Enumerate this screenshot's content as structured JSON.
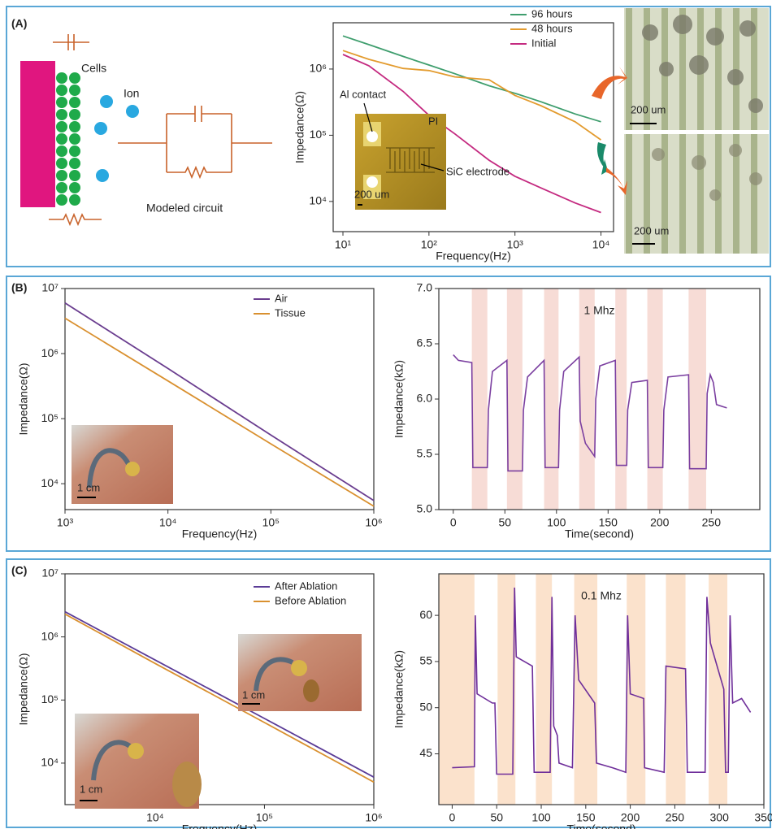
{
  "panels": [
    {
      "label": "(A)"
    },
    {
      "label": "(B)"
    },
    {
      "label": "(C)"
    }
  ],
  "diagram": {
    "cells": "Cells",
    "ion": "Ion",
    "circuit": "Modeled circuit"
  },
  "images": [
    {
      "scale_bar": "200 um"
    },
    {
      "scale_bar": "200 um"
    },
    {
      "scale_bar": "200 um"
    },
    {
      "scale_bar": "1 cm"
    },
    {
      "scale_bar": "1 cm"
    },
    {
      "scale_bar": "1 cm"
    }
  ],
  "chart_data": [
    {
      "type": "line",
      "xlabel": "Frequency(Hz)",
      "ylabel": "Impedance(Ω)",
      "xscale": "log",
      "yscale": "log",
      "x": [
        10,
        20,
        50,
        100,
        200,
        500,
        1000,
        2000,
        5000,
        10000
      ],
      "series": [
        {
          "name": "96 hours",
          "color": "#3f9e6e",
          "values": [
            3160000,
            2340000,
            1550000,
            1150000,
            850000,
            560000,
            430000,
            320000,
            210000,
            160000
          ]
        },
        {
          "name": "48 hours",
          "color": "#e39b2e",
          "values": [
            1900000,
            1400000,
            1020000,
            950000,
            760000,
            690000,
            400000,
            280000,
            160000,
            85000
          ]
        },
        {
          "name": "Initial",
          "color": "#c42a80",
          "values": [
            1660000,
            1120000,
            460000,
            200000,
            105000,
            42000,
            24000,
            16000,
            9500,
            6800
          ]
        }
      ],
      "xlim": [
        7.7,
        14000
      ],
      "ylim": [
        3500,
        5000000
      ],
      "xticks": [
        {
          "value": 10,
          "label": "10¹"
        },
        {
          "value": 100,
          "label": "10²"
        },
        {
          "value": 1000,
          "label": "10³"
        },
        {
          "value": 10000,
          "label": "10⁴"
        }
      ],
      "yticks": [
        {
          "value": 10000,
          "label": "10⁴"
        },
        {
          "value": 100000,
          "label": "10⁵"
        },
        {
          "value": 1000000,
          "label": "10⁶"
        }
      ],
      "legend": "upper right",
      "grid": false,
      "annotations": [
        "Al contact",
        "PI",
        "SiC electrode"
      ]
    },
    {
      "type": "line",
      "xlabel": "Frequency(Hz)",
      "ylabel": "Impedance(Ω)",
      "xscale": "log",
      "yscale": "log",
      "x": [
        1000,
        10000,
        100000,
        1000000
      ],
      "series": [
        {
          "name": "Air",
          "color": "#6a3d8f",
          "values": [
            6000000,
            590000,
            56000,
            5500
          ]
        },
        {
          "name": "Tissue",
          "color": "#d9902f",
          "values": [
            3500000,
            380000,
            41000,
            4500
          ]
        }
      ],
      "xlim": [
        1000,
        1000000
      ],
      "ylim": [
        4000,
        10000000
      ],
      "xticks": [
        {
          "value": 1000,
          "label": "10³"
        },
        {
          "value": 10000,
          "label": "10⁴"
        },
        {
          "value": 100000,
          "label": "10⁵"
        },
        {
          "value": 1000000,
          "label": "10⁶"
        }
      ],
      "yticks": [
        {
          "value": 10000,
          "label": "10⁴"
        },
        {
          "value": 100000,
          "label": "10⁵"
        },
        {
          "value": 1000000,
          "label": "10⁶"
        },
        {
          "value": 10000000,
          "label": "10⁷"
        }
      ],
      "legend": "upper right",
      "grid": false
    },
    {
      "type": "line",
      "xlabel": "Time(second)",
      "ylabel": "Impedance(kΩ)",
      "annotation": "1 Mhz",
      "color": "#7b3fa0",
      "band_color": "#f7dcd6",
      "x": [
        0,
        5,
        18,
        19,
        33,
        34,
        38,
        52,
        53,
        67,
        68,
        72,
        88,
        89,
        102,
        103,
        107,
        122,
        123,
        128,
        137,
        138,
        142,
        157,
        158,
        168,
        169,
        173,
        188,
        189,
        203,
        204,
        208,
        228,
        229,
        245,
        246,
        249,
        252,
        255,
        265
      ],
      "values": [
        6.4,
        6.35,
        6.33,
        5.38,
        5.38,
        5.9,
        6.25,
        6.35,
        5.35,
        5.35,
        5.9,
        6.2,
        6.35,
        5.38,
        5.38,
        5.9,
        6.25,
        6.38,
        5.8,
        5.6,
        5.48,
        6.0,
        6.3,
        6.35,
        5.4,
        5.4,
        5.9,
        6.15,
        6.17,
        5.38,
        5.38,
        5.9,
        6.2,
        6.22,
        5.37,
        5.37,
        6.05,
        6.22,
        6.15,
        5.95,
        5.92
      ],
      "bands": [
        [
          18,
          33
        ],
        [
          52,
          67
        ],
        [
          88,
          102
        ],
        [
          122,
          137
        ],
        [
          157,
          168
        ],
        [
          188,
          203
        ],
        [
          228,
          245
        ]
      ],
      "xlim": [
        -14,
        297
      ],
      "ylim": [
        5,
        7
      ],
      "xticks": [
        0,
        50,
        100,
        150,
        200,
        250
      ],
      "yticks": [
        {
          "value": 5,
          "label": "5.0"
        },
        {
          "value": 5.5,
          "label": "5.5"
        },
        {
          "value": 6,
          "label": "6.0"
        },
        {
          "value": 6.5,
          "label": "6.5"
        },
        {
          "value": 7,
          "label": "7.0"
        }
      ],
      "grid": false
    },
    {
      "type": "line",
      "xlabel": "Frequency(Hz)",
      "ylabel": "Impedance(Ω)",
      "xscale": "log",
      "yscale": "log",
      "x": [
        1500,
        10000,
        100000,
        1000000
      ],
      "series": [
        {
          "name": "After Ablation",
          "color": "#5b3c97",
          "values": [
            2500000,
            430000,
            51000,
            6000
          ]
        },
        {
          "name": "Before Ablation",
          "color": "#d9902f",
          "values": [
            2300000,
            380000,
            44000,
            5000
          ]
        }
      ],
      "xlim": [
        1500,
        1000000
      ],
      "ylim": [
        2200,
        10000000
      ],
      "xticks": [
        {
          "value": 10000,
          "label": "10⁴"
        },
        {
          "value": 100000,
          "label": "10⁵"
        },
        {
          "value": 1000000,
          "label": "10⁶"
        }
      ],
      "yticks": [
        {
          "value": 10000,
          "label": "10⁴"
        },
        {
          "value": 100000,
          "label": "10⁵"
        },
        {
          "value": 1000000,
          "label": "10⁶"
        },
        {
          "value": 10000000,
          "label": "10⁷"
        }
      ],
      "legend": "upper right",
      "grid": false
    },
    {
      "type": "line",
      "xlabel": "Time(second)",
      "ylabel": "Impedance(kΩ)",
      "annotation": "0.1 Mhz",
      "color": "#6f2f9a",
      "band_color": "#fbe2cc",
      "x": [
        0,
        25,
        26,
        28,
        45,
        48,
        50,
        68,
        70,
        72,
        90,
        92,
        110,
        112,
        114,
        118,
        120,
        135,
        138,
        142,
        160,
        162,
        180,
        195,
        197,
        200,
        215,
        216,
        238,
        240,
        262,
        264,
        284,
        286,
        290,
        305,
        307,
        310,
        312,
        315,
        325,
        335
      ],
      "values": [
        43.5,
        43.6,
        60,
        51.5,
        50.5,
        50.5,
        42.8,
        42.8,
        63,
        55.5,
        54.5,
        43,
        43,
        62,
        48,
        47,
        44,
        43.5,
        60,
        53,
        50.5,
        44,
        43.5,
        43,
        60,
        51.5,
        51,
        43.5,
        43,
        54.5,
        54.2,
        43,
        43,
        62,
        57,
        52,
        43,
        43,
        60,
        50.5,
        51,
        49.5
      ],
      "bands": [
        [
          -15,
          25
        ],
        [
          51,
          71
        ],
        [
          94,
          112
        ],
        [
          137,
          163
        ],
        [
          196,
          217
        ],
        [
          240,
          262
        ],
        [
          288,
          309
        ]
      ],
      "xlim": [
        -15,
        350
      ],
      "ylim": [
        39.5,
        64.5
      ],
      "xticks": [
        0,
        50,
        100,
        150,
        200,
        250,
        300,
        350
      ],
      "yticks": [
        45,
        50,
        55,
        60
      ],
      "grid": false
    }
  ]
}
